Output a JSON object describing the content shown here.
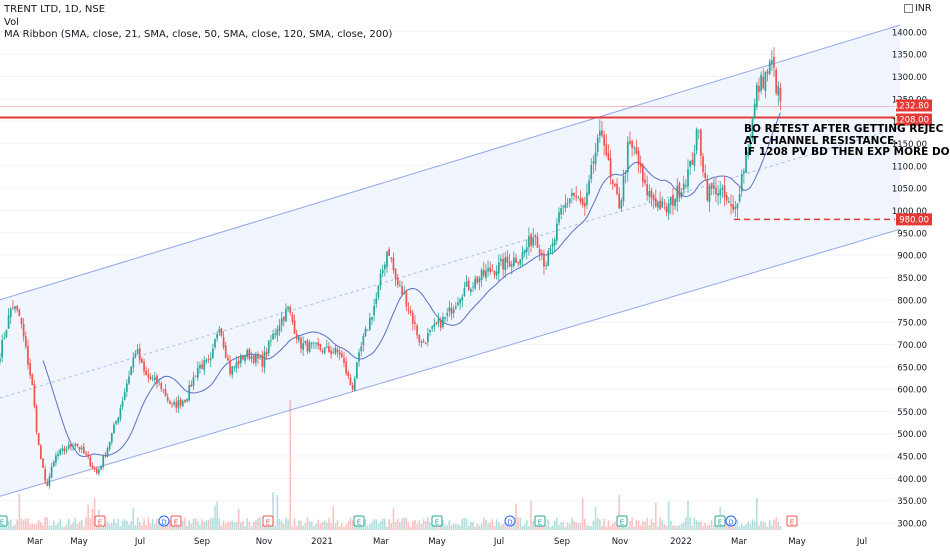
{
  "legend": {
    "title": "TRENT LTD, 1D, NSE",
    "vol": "Vol",
    "ma_ribbon": "MA Ribbon (SMA, close, 21, SMA, close, 50, SMA, close, 120, SMA, close, 200)"
  },
  "currency": "INR",
  "annotation": {
    "line1": "BO RETEST AFTER GETTING REJEC",
    "line2": "AT CHANNEL RESISTANCE.",
    "line3": "IF 1208 PV BD THEN EXP MORE DO"
  },
  "colors": {
    "up": "#26a69a",
    "down": "#ef5350",
    "channel": "#8fa8e8",
    "channel_fill": "#eef2fd",
    "ma": "#5b6fc4",
    "level": "#e53935",
    "axis_text": "#131722"
  },
  "chart_data": {
    "type": "candlestick",
    "symbol": "TRENT LTD",
    "interval": "1D",
    "exchange": "NSE",
    "ylim": [
      280,
      1460
    ],
    "y_ticks": [
      "300.00",
      "350.00",
      "400.00",
      "450.00",
      "500.00",
      "550.00",
      "600.00",
      "650.00",
      "700.00",
      "750.00",
      "800.00",
      "850.00",
      "900.00",
      "950.00",
      "1000.00",
      "1050.00",
      "1100.00",
      "1150.00",
      "1200.00",
      "1250.00",
      "1300.00",
      "1350.00",
      "1400.00"
    ],
    "x_ticks": [
      "Mar",
      "May",
      "Jul",
      "Sep",
      "Nov",
      "2021",
      "Mar",
      "May",
      "Jul",
      "Sep",
      "Nov",
      "2022",
      "Mar",
      "May",
      "Jul"
    ],
    "price_labels": [
      {
        "value": 1232.8,
        "text": "1232.80"
      },
      {
        "value": 1208.0,
        "text": "1208.00"
      },
      {
        "value": 980.0,
        "text": "980.00"
      }
    ],
    "levels": [
      {
        "value": 1208.0,
        "style": "solid"
      },
      {
        "value": 980.0,
        "style": "dashed"
      }
    ],
    "channel": {
      "upper_start": 800,
      "upper_end": 1415,
      "lower_start": 360,
      "lower_end": 958,
      "mid_start": 580,
      "mid_end": 1186
    },
    "close_anchors": [
      {
        "x": 0,
        "y": 680
      },
      {
        "x": 12,
        "y": 790
      },
      {
        "x": 20,
        "y": 760
      },
      {
        "x": 32,
        "y": 610
      },
      {
        "x": 38,
        "y": 480
      },
      {
        "x": 46,
        "y": 380
      },
      {
        "x": 56,
        "y": 450
      },
      {
        "x": 75,
        "y": 480
      },
      {
        "x": 86,
        "y": 450
      },
      {
        "x": 97,
        "y": 410
      },
      {
        "x": 106,
        "y": 460
      },
      {
        "x": 118,
        "y": 540
      },
      {
        "x": 130,
        "y": 640
      },
      {
        "x": 136,
        "y": 690
      },
      {
        "x": 145,
        "y": 630
      },
      {
        "x": 160,
        "y": 610
      },
      {
        "x": 172,
        "y": 560
      },
      {
        "x": 186,
        "y": 580
      },
      {
        "x": 198,
        "y": 650
      },
      {
        "x": 211,
        "y": 660
      },
      {
        "x": 219,
        "y": 750
      },
      {
        "x": 230,
        "y": 640
      },
      {
        "x": 246,
        "y": 680
      },
      {
        "x": 262,
        "y": 660
      },
      {
        "x": 277,
        "y": 740
      },
      {
        "x": 288,
        "y": 780
      },
      {
        "x": 300,
        "y": 700
      },
      {
        "x": 320,
        "y": 690
      },
      {
        "x": 340,
        "y": 680
      },
      {
        "x": 352,
        "y": 600
      },
      {
        "x": 362,
        "y": 700
      },
      {
        "x": 376,
        "y": 800
      },
      {
        "x": 388,
        "y": 920
      },
      {
        "x": 396,
        "y": 840
      },
      {
        "x": 406,
        "y": 800
      },
      {
        "x": 412,
        "y": 760
      },
      {
        "x": 421,
        "y": 700
      },
      {
        "x": 436,
        "y": 740
      },
      {
        "x": 446,
        "y": 760
      },
      {
        "x": 462,
        "y": 820
      },
      {
        "x": 486,
        "y": 860
      },
      {
        "x": 504,
        "y": 880
      },
      {
        "x": 522,
        "y": 900
      },
      {
        "x": 535,
        "y": 950
      },
      {
        "x": 545,
        "y": 880
      },
      {
        "x": 553,
        "y": 920
      },
      {
        "x": 560,
        "y": 990
      },
      {
        "x": 572,
        "y": 1040
      },
      {
        "x": 585,
        "y": 1000
      },
      {
        "x": 594,
        "y": 1120
      },
      {
        "x": 603,
        "y": 1180
      },
      {
        "x": 611,
        "y": 1060
      },
      {
        "x": 620,
        "y": 1010
      },
      {
        "x": 628,
        "y": 1140
      },
      {
        "x": 636,
        "y": 1130
      },
      {
        "x": 644,
        "y": 1050
      },
      {
        "x": 656,
        "y": 1020
      },
      {
        "x": 666,
        "y": 1000
      },
      {
        "x": 683,
        "y": 1060
      },
      {
        "x": 691,
        "y": 1100
      },
      {
        "x": 698,
        "y": 1180
      },
      {
        "x": 707,
        "y": 1040
      },
      {
        "x": 716,
        "y": 1050
      },
      {
        "x": 724,
        "y": 1030
      },
      {
        "x": 734,
        "y": 990
      },
      {
        "x": 742,
        "y": 1080
      },
      {
        "x": 750,
        "y": 1160
      },
      {
        "x": 757,
        "y": 1270
      },
      {
        "x": 765,
        "y": 1300
      },
      {
        "x": 772,
        "y": 1330
      },
      {
        "x": 777,
        "y": 1270
      },
      {
        "x": 782,
        "y": 1232
      }
    ]
  }
}
